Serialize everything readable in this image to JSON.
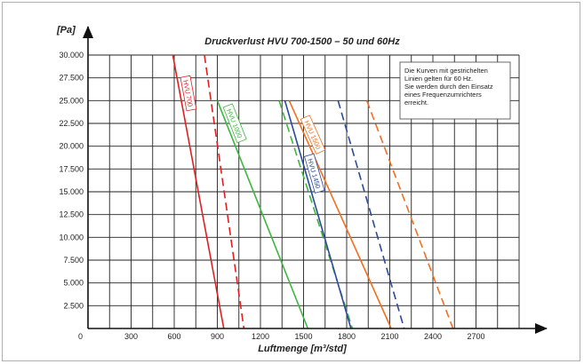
{
  "chart_data": {
    "type": "line",
    "title": "Druckverlust HVU 700-1500 – 50 und 60Hz",
    "xlabel": "Luftmenge [m³/std]",
    "ylabel": "[Pa]",
    "xlim": [
      0,
      3000
    ],
    "ylim": [
      0,
      30000
    ],
    "x_ticks": [
      "0",
      "300",
      "600",
      "900",
      "1200",
      "1500",
      "1800",
      "2100",
      "2400",
      "2700"
    ],
    "y_ticks": [
      "2.500",
      "5.000",
      "7.500",
      "10.000",
      "12.500",
      "15.000",
      "17.500",
      "20.000",
      "22.500",
      "25.000",
      "27.500",
      "30.000"
    ],
    "grid": true,
    "note": [
      "Die Kurven mit gestrichelten",
      "Linien gelten für 60 Hz.",
      "Sie werden durch den Einsatz",
      "eines Frequenzumrichters",
      "erreicht."
    ],
    "series": [
      {
        "name": "HVU 700",
        "color": "#e02020",
        "dash": false,
        "points": [
          [
            590,
            30000
          ],
          [
            945,
            0
          ]
        ]
      },
      {
        "name": "",
        "color": "#e02020",
        "dash": true,
        "points": [
          [
            810,
            30000
          ],
          [
            1085,
            0
          ]
        ]
      },
      {
        "name": "HVU 1000",
        "color": "#3cb83c",
        "dash": false,
        "points": [
          [
            900,
            25000
          ],
          [
            1530,
            0
          ]
        ]
      },
      {
        "name": "",
        "color": "#3cb83c",
        "dash": true,
        "points": [
          [
            1330,
            25000
          ],
          [
            1840,
            0
          ]
        ]
      },
      {
        "name": "HVU 1450",
        "color": "#2a4a9c",
        "dash": false,
        "points": [
          [
            1370,
            25000
          ],
          [
            1830,
            0
          ]
        ]
      },
      {
        "name": "",
        "color": "#2a4a9c",
        "dash": true,
        "points": [
          [
            1740,
            25000
          ],
          [
            2200,
            0
          ]
        ]
      },
      {
        "name": "HVU 1500",
        "color": "#f07020",
        "dash": false,
        "points": [
          [
            1400,
            25000
          ],
          [
            2110,
            0
          ]
        ]
      },
      {
        "name": "",
        "color": "#f07020",
        "dash": true,
        "points": [
          [
            1940,
            25000
          ],
          [
            2540,
            0
          ]
        ]
      }
    ]
  }
}
